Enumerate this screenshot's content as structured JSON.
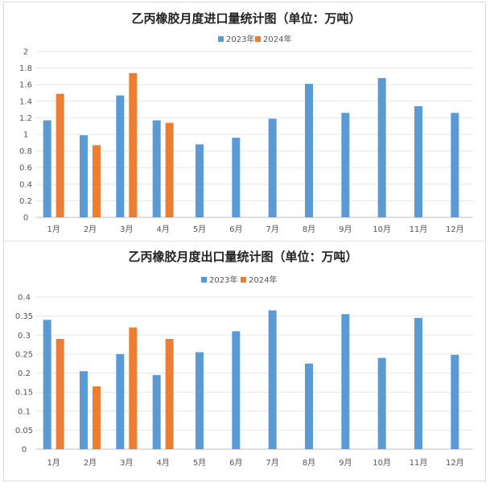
{
  "legend_colors": {
    "2023年": "#5b9bd5",
    "2024年": "#ed7d31"
  },
  "chart_data": [
    {
      "type": "bar",
      "title": "乙丙橡胶月度进口量统计图（单位：万吨）",
      "categories": [
        "1月",
        "2月",
        "3月",
        "4月",
        "5月",
        "6月",
        "7月",
        "8月",
        "9月",
        "10月",
        "11月",
        "12月"
      ],
      "series": [
        {
          "name": "2023年",
          "color": "#5b9bd5",
          "values": [
            1.17,
            0.99,
            1.47,
            1.17,
            0.88,
            0.96,
            1.19,
            1.61,
            1.26,
            1.68,
            1.34,
            1.26
          ]
        },
        {
          "name": "2024年",
          "color": "#ed7d31",
          "values": [
            1.49,
            0.87,
            1.74,
            1.14,
            null,
            null,
            null,
            null,
            null,
            null,
            null,
            null
          ]
        }
      ],
      "yticks": [
        "0",
        "0.2",
        "0.4",
        "0.6",
        "0.8",
        "1",
        "1.2",
        "1.4",
        "1.6",
        "1.8",
        "2"
      ],
      "ylim": [
        0,
        2
      ],
      "grid": true,
      "legend": "top-center"
    },
    {
      "type": "bar",
      "title": "乙丙橡胶月度出口量统计图（单位：万吨）",
      "categories": [
        "1月",
        "2月",
        "3月",
        "4月",
        "5月",
        "6月",
        "7月",
        "8月",
        "9月",
        "10月",
        "11月",
        "12月"
      ],
      "series": [
        {
          "name": "2023年",
          "color": "#5b9bd5",
          "values": [
            0.34,
            0.205,
            0.25,
            0.195,
            0.255,
            0.31,
            0.365,
            0.225,
            0.355,
            0.24,
            0.345,
            0.248
          ]
        },
        {
          "name": "2024年",
          "color": "#ed7d31",
          "values": [
            0.29,
            0.165,
            0.32,
            0.29,
            null,
            null,
            null,
            null,
            null,
            null,
            null,
            null
          ]
        }
      ],
      "yticks": [
        "0",
        "0.05",
        "0.1",
        "0.15",
        "0.2",
        "0.25",
        "0.3",
        "0.35",
        "0.4"
      ],
      "ylim": [
        0,
        0.4
      ],
      "grid": true,
      "legend": "top-center"
    }
  ]
}
